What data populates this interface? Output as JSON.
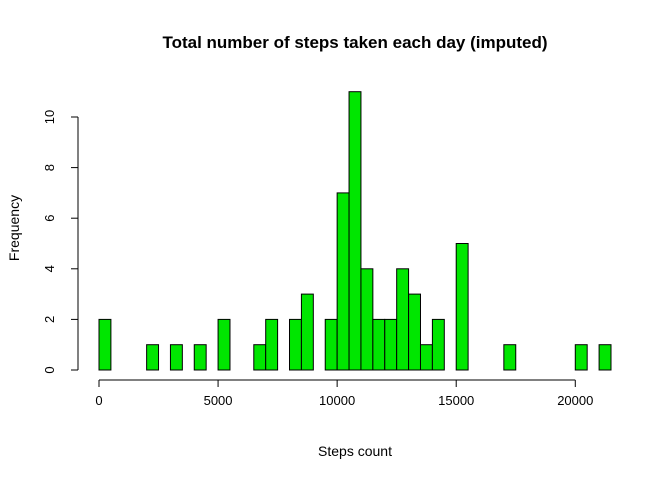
{
  "chart_data": {
    "type": "bar",
    "title": "Total number of steps taken each day (imputed)",
    "xlabel": "Steps count",
    "ylabel": "Frequency",
    "bin_width": 500,
    "x_start": 0,
    "xlim": [
      0,
      21500
    ],
    "ylim": [
      0,
      11
    ],
    "x_ticks": [
      0,
      5000,
      10000,
      15000,
      20000
    ],
    "y_ticks": [
      0,
      2,
      4,
      6,
      8,
      10
    ],
    "values": [
      2,
      0,
      0,
      0,
      1,
      0,
      1,
      0,
      1,
      0,
      2,
      0,
      0,
      1,
      2,
      0,
      2,
      3,
      0,
      2,
      7,
      11,
      4,
      2,
      2,
      4,
      3,
      1,
      2,
      0,
      5,
      0,
      0,
      0,
      1,
      0,
      0,
      0,
      0,
      0,
      1,
      0,
      1
    ],
    "bar_color": "#00E600",
    "border_color": "#000000",
    "grid": false
  }
}
